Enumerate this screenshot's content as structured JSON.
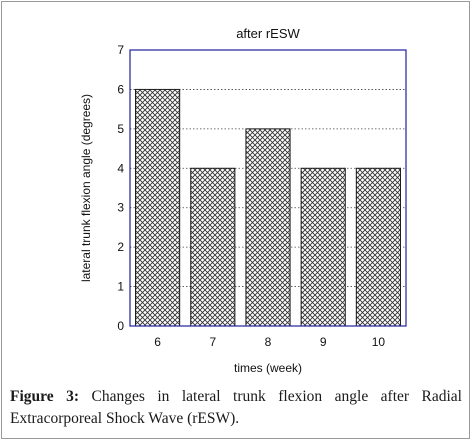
{
  "chart_data": {
    "type": "bar",
    "title": "after rESW",
    "xlabel": "times (week)",
    "ylabel": "lateral trunk flexion angle (degrees)",
    "categories": [
      "6",
      "7",
      "8",
      "9",
      "10"
    ],
    "values": [
      6,
      4,
      5,
      4,
      4
    ],
    "ylim": [
      0,
      7
    ],
    "yticks": [
      "0",
      "1",
      "2",
      "3",
      "4",
      "5",
      "6",
      "7"
    ],
    "grid": "horizontal dotted",
    "legend": "none",
    "colors": {
      "plot_border": "#2020a0",
      "bar_fill": "#9a9a9a",
      "bar_edge": "#1a1a1a",
      "grid": "#444444"
    }
  },
  "caption": {
    "label": "Figure 3:",
    "text": " Changes in lateral trunk flexion angle after Radial Extracorporeal Shock Wave (rESW)."
  }
}
